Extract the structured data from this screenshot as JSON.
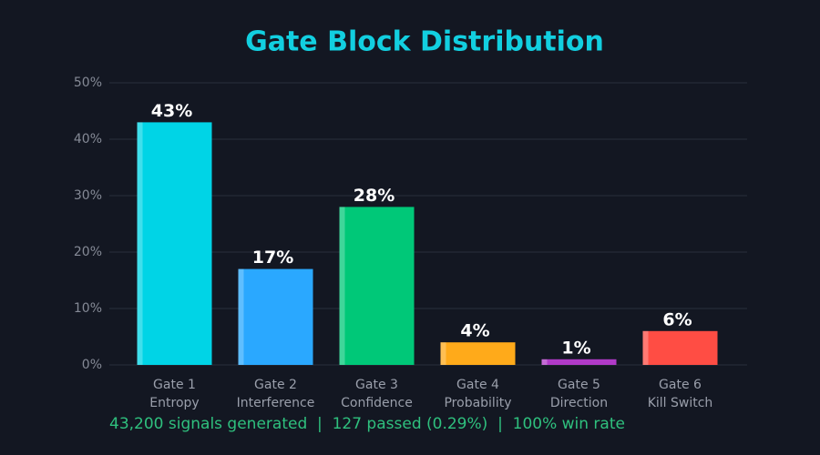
{
  "chart_data": {
    "type": "bar",
    "title": "Gate Block Distribution",
    "categories": [
      [
        "Gate 1",
        "Entropy"
      ],
      [
        "Gate 2",
        "Interference"
      ],
      [
        "Gate 3",
        "Confidence"
      ],
      [
        "Gate 4",
        "Probability"
      ],
      [
        "Gate 5",
        "Direction"
      ],
      [
        "Gate 6",
        "Kill Switch"
      ]
    ],
    "values": [
      43,
      17,
      28,
      4,
      1,
      6
    ],
    "value_labels": [
      "43%",
      "17%",
      "28%",
      "4%",
      "1%",
      "6%"
    ],
    "colors": [
      "#00d4e6",
      "#2aa8ff",
      "#00c878",
      "#ffaa1a",
      "#b03ac8",
      "#ff4d44"
    ],
    "ylim": [
      0,
      50
    ],
    "yticks": [
      {
        "value": 0,
        "label": "0%"
      },
      {
        "value": 10,
        "label": "10%"
      },
      {
        "value": 20,
        "label": "20%"
      },
      {
        "value": 30,
        "label": "30%"
      },
      {
        "value": 40,
        "label": "40%"
      },
      {
        "value": 50,
        "label": "50%"
      }
    ],
    "grid": true,
    "footer": "43,200 signals generated  |  127 passed (0.29%)  |  100% win rate"
  }
}
